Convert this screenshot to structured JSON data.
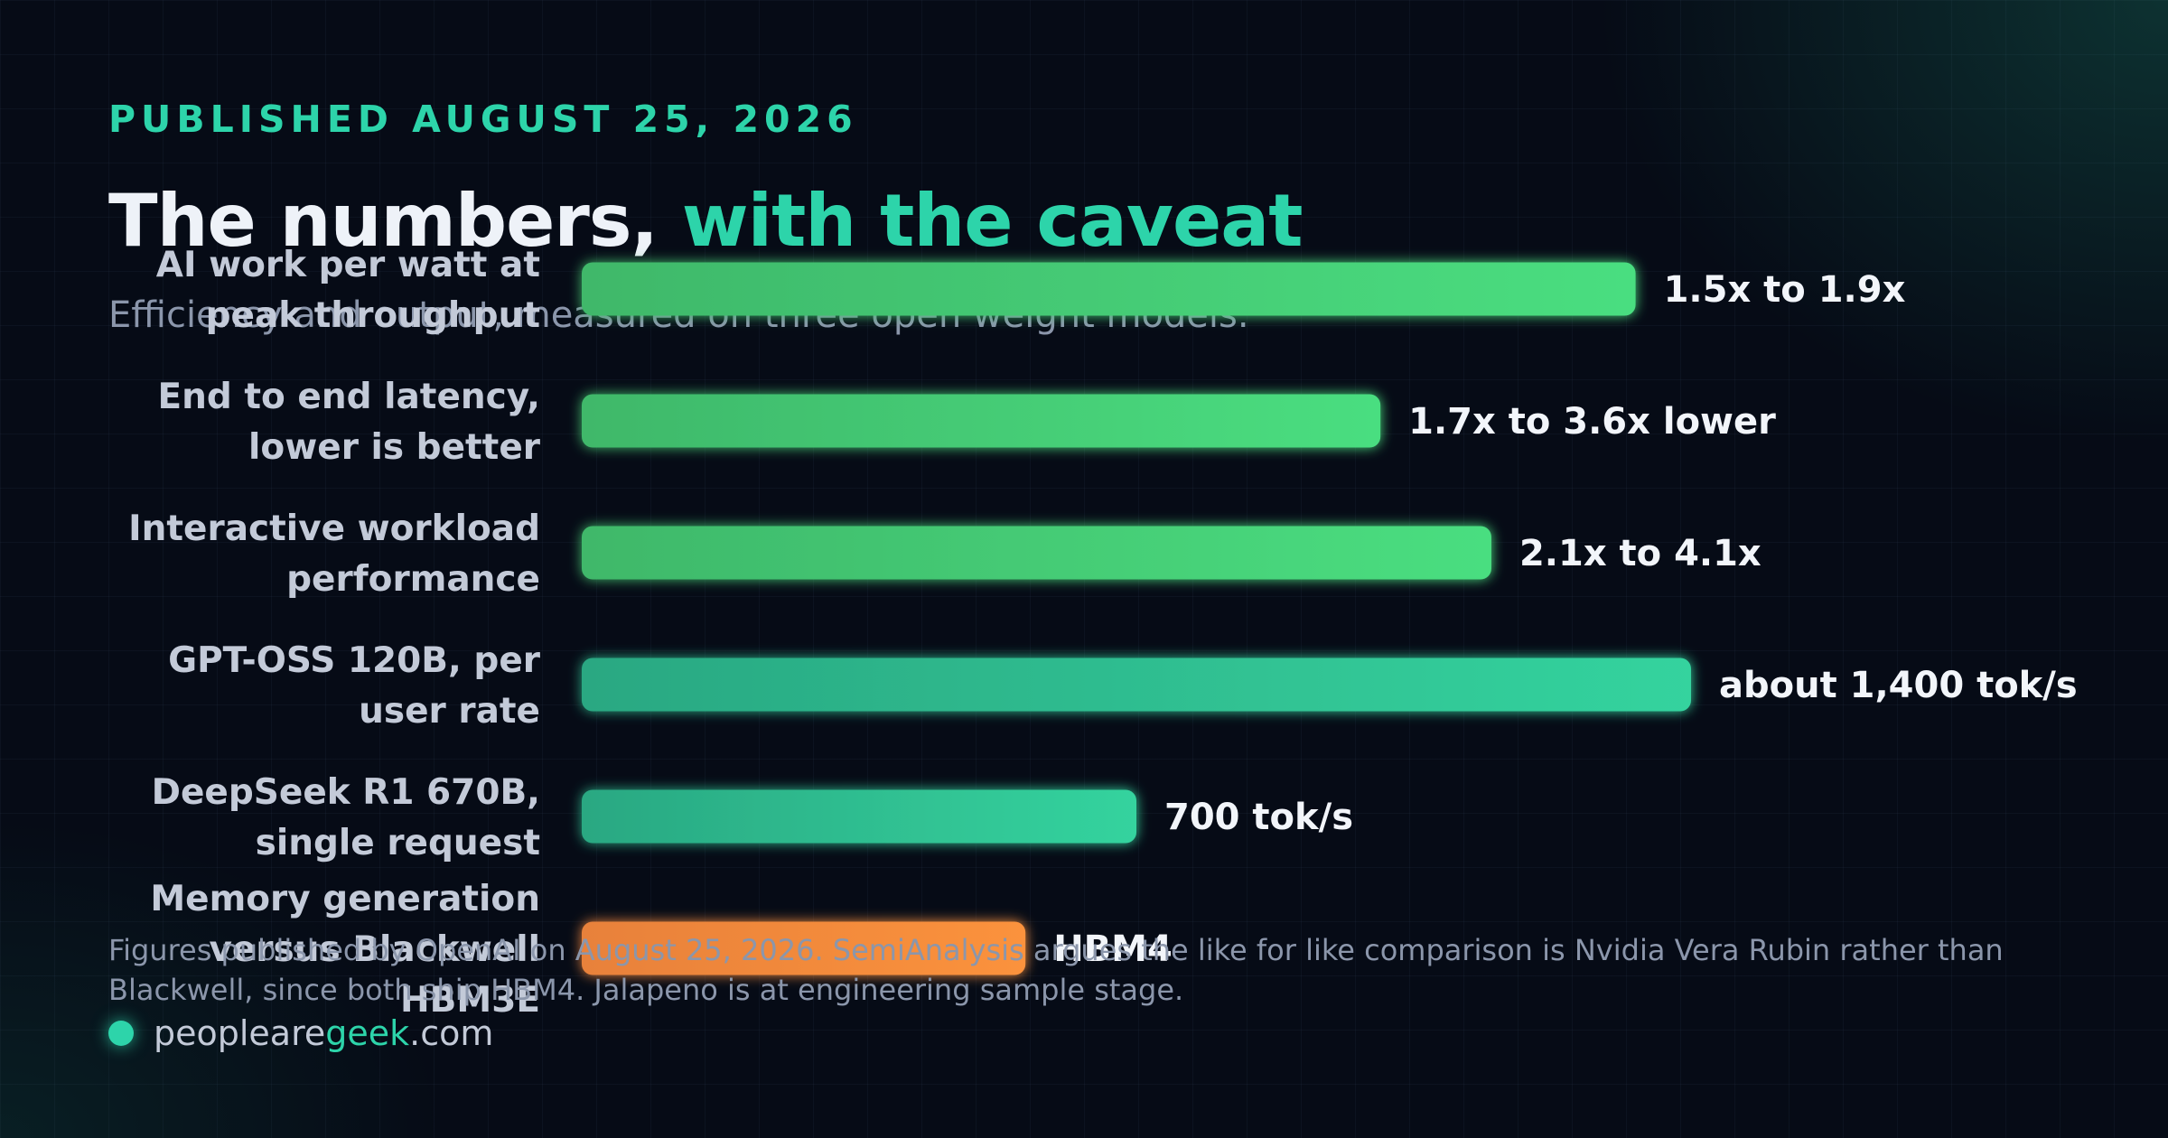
{
  "header": {
    "eyebrow": "PUBLISHED AUGUST 25, 2026",
    "title_main": "The numbers, ",
    "title_accent": "with the caveat",
    "subtitle": "Efficiency and output, measured on three open weight models."
  },
  "footnote": "Figures published by OpenAI on August 25, 2026. SemiAnalysis argues the like for like comparison is Nvidia Vera Rubin rather than Blackwell, since both ship HBM4. Jalapeno is at engineering sample stage.",
  "brand": {
    "part1": "peopleare",
    "part2": "geek",
    "part3": ".com"
  },
  "colors": {
    "accent": "#2dd4aa",
    "green": "#4ade80",
    "teal": "#34d39e",
    "orange": "#fb923c"
  },
  "chart_data": {
    "type": "bar",
    "orientation": "horizontal",
    "categories": [
      [
        "AI work per watt at",
        "peak throughput"
      ],
      [
        "End to end latency,",
        "lower is better"
      ],
      [
        "Interactive workload",
        "performance"
      ],
      [
        "GPT-OSS 120B, per",
        "user rate"
      ],
      [
        "DeepSeek R1 670B,",
        "single request"
      ],
      [
        "Memory generation",
        "versus Blackwell",
        "HBM3E"
      ]
    ],
    "values": [
      0.95,
      0.72,
      0.82,
      1.0,
      0.5,
      0.4
    ],
    "value_labels": [
      "1.5x to 1.9x",
      "1.7x to 3.6x lower",
      "2.1x to 4.1x",
      "about 1,400 tok/s",
      "700 tok/s",
      "HBM4"
    ],
    "bar_colors": [
      "green",
      "green",
      "green",
      "teal",
      "teal",
      "orange"
    ]
  }
}
